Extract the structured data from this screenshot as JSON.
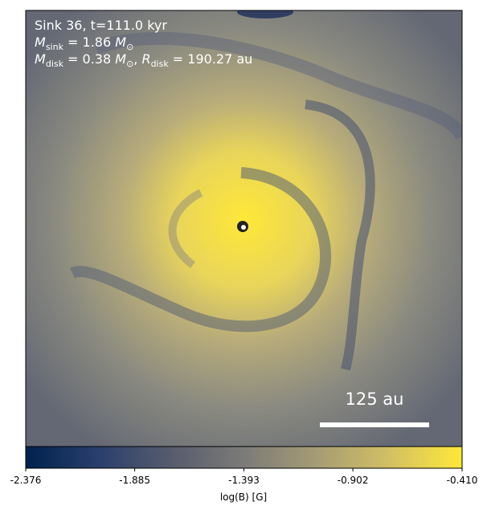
{
  "chart_data": {
    "type": "image",
    "annotations": [
      [
        {
          "text": "Sink 36, t=111.0 kyr"
        }
      ],
      [
        {
          "text": "M",
          "italic": true
        },
        {
          "text": "sink",
          "sub": true
        },
        {
          "text": " = 1.86 "
        },
        {
          "text": "M",
          "italic": true
        },
        {
          "text": "⊙",
          "sub": true
        }
      ],
      [
        {
          "text": "M",
          "italic": true
        },
        {
          "text": "disk",
          "sub": true
        },
        {
          "text": " = 0.38 "
        },
        {
          "text": "M",
          "italic": true
        },
        {
          "text": "⊙",
          "sub": true
        },
        {
          "text": ", "
        },
        {
          "text": "R",
          "italic": true
        },
        {
          "text": "disk",
          "sub": true
        },
        {
          "text": " = 190.27 au"
        }
      ]
    ],
    "scale_bar_label": "125 au",
    "colorbar": {
      "label": "log(B) [G]",
      "clim": [
        -2.376,
        -0.41
      ],
      "ticks": [
        -2.376,
        -1.885,
        -1.393,
        -0.902,
        {
          "value": -0.41,
          "label": "-0.410"
        }
      ],
      "colormap": [
        "#00224e",
        "#2a3f6d",
        "#575c6d",
        "#7c7b78",
        "#a59c74",
        "#d3c064",
        "#fee838"
      ]
    }
  }
}
